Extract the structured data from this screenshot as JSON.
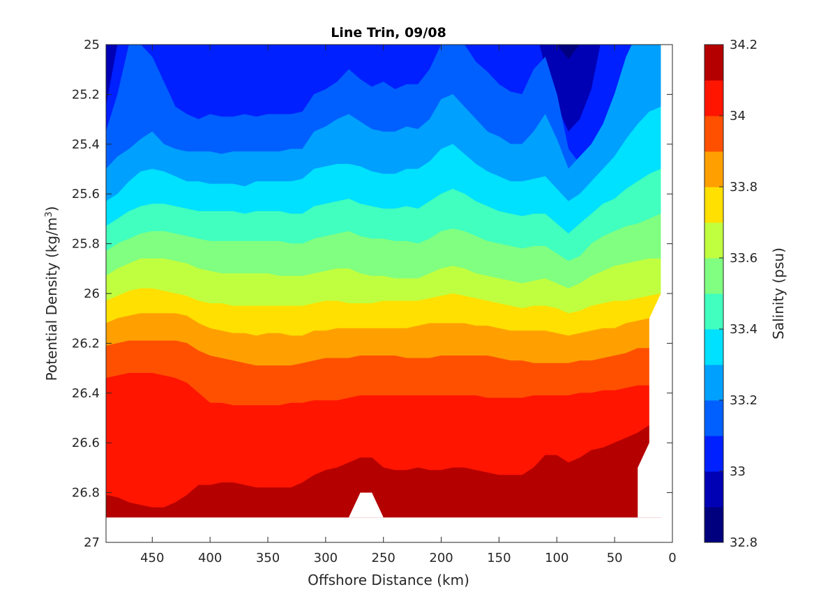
{
  "chart_data": {
    "type": "filled-contour",
    "title": "Line Trin, 09/08",
    "xlabel": "Offshore Distance (km)",
    "ylabel": "Potential Density (kg/m",
    "ylabel_superscript": "3",
    "ylabel_suffix": ")",
    "colorbar_label": "Salinity (psu)",
    "xlim": [
      490,
      0
    ],
    "x_reversed": true,
    "ylim": [
      25,
      27
    ],
    "y_reversed": true,
    "x_ticks": [
      450,
      400,
      350,
      300,
      250,
      200,
      150,
      100,
      50,
      0
    ],
    "y_ticks": [
      "25",
      "25.2",
      "25.4",
      "25.6",
      "25.8",
      "26",
      "26.2",
      "26.4",
      "26.6",
      "26.8",
      "27"
    ],
    "colorbar_ticks": [
      "32.8",
      "33",
      "33.2",
      "33.4",
      "33.6",
      "33.8",
      "34",
      "34.2"
    ],
    "colorbar_range": [
      32.8,
      34.2
    ],
    "contour_step": 0.1,
    "colormap": "jet",
    "level_colors": [
      "#00007f",
      "#0000b5",
      "#0020ff",
      "#0060ff",
      "#00a0ff",
      "#00e0ff",
      "#40ffbf",
      "#80ff80",
      "#c0ff40",
      "#ffe000",
      "#ffa000",
      "#ff5000",
      "#ff1500",
      "#b50000"
    ],
    "grid": false,
    "legend": "colorbar-right",
    "x": [
      490,
      480,
      470,
      460,
      450,
      440,
      430,
      420,
      410,
      400,
      390,
      380,
      370,
      360,
      350,
      340,
      330,
      320,
      310,
      300,
      290,
      280,
      270,
      260,
      250,
      240,
      230,
      220,
      210,
      200,
      190,
      180,
      170,
      160,
      150,
      140,
      130,
      120,
      110,
      100,
      90,
      80,
      70,
      60,
      50,
      40,
      30,
      20,
      10
    ],
    "isopycnals": [
      {
        "level": 32.9,
        "density": [
          24.9,
          24.9,
          24.9,
          24.9,
          24.9,
          24.9,
          24.9,
          25.06,
          25.1,
          25.1,
          25.1,
          25.07,
          25.1,
          25.09,
          25.07,
          25.1,
          25.1,
          25.03,
          24.9,
          24.9,
          24.9,
          24.9,
          24.9,
          24.9,
          24.9,
          24.9,
          24.9,
          24.9,
          24.9,
          24.9,
          24.9,
          24.9,
          24.9,
          24.9,
          24.9,
          24.9,
          24.9,
          24.9,
          24.9,
          25.0,
          25.06,
          25.0,
          24.9,
          24.9,
          24.9,
          24.9,
          24.9,
          24.9,
          24.9
        ]
      },
      {
        "level": 33.0,
        "density": [
          25.25,
          25.0,
          24.9,
          24.9,
          24.9,
          24.9,
          24.9,
          24.9,
          24.9,
          24.9,
          24.9,
          24.9,
          24.9,
          24.9,
          24.9,
          24.9,
          24.9,
          24.9,
          24.9,
          24.9,
          24.9,
          24.9,
          24.9,
          24.9,
          24.9,
          24.9,
          24.9,
          24.9,
          24.9,
          24.9,
          24.9,
          24.9,
          24.9,
          24.9,
          24.9,
          24.9,
          24.9,
          24.9,
          25.1,
          25.25,
          25.35,
          25.3,
          25.18,
          24.95,
          24.9,
          24.9,
          24.9,
          24.9,
          24.9
        ]
      },
      {
        "level": 33.1,
        "density": [
          25.35,
          25.2,
          25.0,
          25.0,
          25.05,
          25.15,
          25.25,
          25.28,
          25.3,
          25.28,
          25.29,
          25.29,
          25.28,
          25.29,
          25.28,
          25.28,
          25.28,
          25.27,
          25.2,
          25.18,
          25.15,
          25.1,
          25.14,
          25.17,
          25.15,
          25.18,
          25.16,
          25.16,
          25.1,
          25.0,
          24.95,
          25.0,
          25.07,
          25.11,
          25.16,
          25.19,
          25.2,
          25.1,
          25.05,
          25.2,
          25.42,
          25.48,
          25.45,
          25.38,
          25.28,
          25.18,
          25.05,
          24.9,
          24.9
        ]
      },
      {
        "level": 33.2,
        "density": [
          25.5,
          25.45,
          25.42,
          25.38,
          25.35,
          25.4,
          25.42,
          25.43,
          25.43,
          25.43,
          25.44,
          25.43,
          25.43,
          25.43,
          25.43,
          25.43,
          25.42,
          25.42,
          25.35,
          25.33,
          25.3,
          25.28,
          25.31,
          25.34,
          25.35,
          25.35,
          25.33,
          25.34,
          25.3,
          25.22,
          25.2,
          25.25,
          25.3,
          25.35,
          25.37,
          25.4,
          25.4,
          25.35,
          25.28,
          25.38,
          25.5,
          25.45,
          25.4,
          25.32,
          25.2,
          25.05,
          24.95,
          24.9,
          24.9
        ]
      },
      {
        "level": 33.3,
        "density": [
          25.63,
          25.6,
          25.55,
          25.51,
          25.5,
          25.51,
          25.53,
          25.55,
          25.55,
          25.56,
          25.56,
          25.56,
          25.57,
          25.55,
          25.55,
          25.55,
          25.55,
          25.54,
          25.5,
          25.49,
          25.48,
          25.48,
          25.49,
          25.51,
          25.52,
          25.52,
          25.5,
          25.5,
          25.47,
          25.42,
          25.4,
          25.44,
          25.48,
          25.51,
          25.53,
          25.55,
          25.55,
          25.54,
          25.53,
          25.58,
          25.63,
          25.6,
          25.55,
          25.5,
          25.45,
          25.38,
          25.32,
          25.27,
          25.25
        ]
      },
      {
        "level": 33.4,
        "density": [
          25.73,
          25.7,
          25.67,
          25.65,
          25.64,
          25.64,
          25.65,
          25.66,
          25.67,
          25.67,
          25.67,
          25.67,
          25.68,
          25.67,
          25.67,
          25.67,
          25.68,
          25.68,
          25.65,
          25.64,
          25.63,
          25.62,
          25.64,
          25.65,
          25.66,
          25.66,
          25.65,
          25.66,
          25.63,
          25.6,
          25.58,
          25.6,
          25.63,
          25.65,
          25.67,
          25.68,
          25.69,
          25.68,
          25.68,
          25.72,
          25.76,
          25.72,
          25.68,
          25.64,
          25.62,
          25.58,
          25.55,
          25.52,
          25.5
        ]
      },
      {
        "level": 33.5,
        "density": [
          25.83,
          25.8,
          25.78,
          25.76,
          25.75,
          25.75,
          25.76,
          25.77,
          25.78,
          25.79,
          25.79,
          25.79,
          25.79,
          25.79,
          25.79,
          25.79,
          25.8,
          25.8,
          25.78,
          25.77,
          25.76,
          25.75,
          25.77,
          25.78,
          25.78,
          25.79,
          25.79,
          25.8,
          25.78,
          25.75,
          25.74,
          25.75,
          25.77,
          25.79,
          25.8,
          25.81,
          25.82,
          25.81,
          25.81,
          25.84,
          25.87,
          25.85,
          25.8,
          25.77,
          25.75,
          25.73,
          25.72,
          25.7,
          25.68
        ]
      },
      {
        "level": 33.6,
        "density": [
          25.93,
          25.9,
          25.88,
          25.86,
          25.86,
          25.86,
          25.87,
          25.88,
          25.9,
          25.91,
          25.92,
          25.92,
          25.92,
          25.92,
          25.92,
          25.93,
          25.93,
          25.93,
          25.92,
          25.91,
          25.9,
          25.9,
          25.92,
          25.93,
          25.93,
          25.94,
          25.94,
          25.94,
          25.92,
          25.9,
          25.89,
          25.9,
          25.92,
          25.93,
          25.94,
          25.95,
          25.96,
          25.95,
          25.94,
          25.96,
          25.98,
          25.96,
          25.93,
          25.91,
          25.89,
          25.88,
          25.87,
          25.86,
          25.86
        ]
      },
      {
        "level": 33.7,
        "density": [
          26.03,
          26.01,
          25.99,
          25.98,
          25.98,
          25.99,
          26.0,
          26.01,
          26.03,
          26.04,
          26.04,
          26.05,
          26.05,
          26.05,
          26.05,
          26.05,
          26.05,
          26.05,
          26.04,
          26.03,
          26.03,
          26.04,
          26.04,
          26.04,
          26.03,
          26.03,
          26.03,
          26.03,
          26.02,
          26.01,
          26.0,
          26.01,
          26.02,
          26.03,
          26.04,
          26.05,
          26.06,
          26.05,
          26.05,
          26.06,
          26.08,
          26.07,
          26.05,
          26.04,
          26.03,
          26.03,
          26.02,
          26.01,
          26.0
        ]
      },
      {
        "level": 33.8,
        "density": [
          26.12,
          26.1,
          26.09,
          26.08,
          26.08,
          26.08,
          26.08,
          26.09,
          26.12,
          26.14,
          26.15,
          26.16,
          26.16,
          26.17,
          26.16,
          26.16,
          26.17,
          26.17,
          26.15,
          26.15,
          26.14,
          26.14,
          26.14,
          26.14,
          26.14,
          26.14,
          26.14,
          26.13,
          26.12,
          26.12,
          26.12,
          26.12,
          26.13,
          26.13,
          26.14,
          26.15,
          26.15,
          26.15,
          26.15,
          26.16,
          26.17,
          26.16,
          26.15,
          26.14,
          26.14,
          26.12,
          26.11,
          26.1,
          26.1
        ]
      },
      {
        "level": 33.9,
        "density": [
          26.21,
          26.2,
          26.19,
          26.19,
          26.19,
          26.19,
          26.19,
          26.2,
          26.23,
          26.25,
          26.26,
          26.27,
          26.28,
          26.29,
          26.29,
          26.29,
          26.29,
          26.28,
          26.27,
          26.26,
          26.26,
          26.26,
          26.25,
          26.25,
          26.25,
          26.25,
          26.26,
          26.26,
          26.26,
          26.25,
          26.25,
          26.25,
          26.25,
          26.25,
          26.26,
          26.27,
          26.27,
          26.28,
          26.28,
          26.28,
          26.28,
          26.27,
          26.27,
          26.26,
          26.25,
          26.24,
          26.22,
          26.22,
          26.22
        ]
      },
      {
        "level": 34.0,
        "density": [
          26.34,
          26.33,
          26.32,
          26.32,
          26.32,
          26.33,
          26.34,
          26.36,
          26.4,
          26.44,
          26.44,
          26.45,
          26.45,
          26.45,
          26.45,
          26.45,
          26.44,
          26.44,
          26.43,
          26.43,
          26.43,
          26.42,
          26.41,
          26.41,
          26.41,
          26.41,
          26.41,
          26.41,
          26.41,
          26.41,
          26.41,
          26.41,
          26.41,
          26.42,
          26.42,
          26.42,
          26.42,
          26.41,
          26.41,
          26.41,
          26.41,
          26.4,
          26.4,
          26.39,
          26.39,
          26.38,
          26.37,
          26.37,
          26.37
        ]
      },
      {
        "level": 34.1,
        "density": [
          26.81,
          26.82,
          26.84,
          26.85,
          26.86,
          26.86,
          26.84,
          26.81,
          26.77,
          26.77,
          26.76,
          26.76,
          26.77,
          26.78,
          26.78,
          26.78,
          26.78,
          26.76,
          26.73,
          26.71,
          26.7,
          26.68,
          26.66,
          26.66,
          26.7,
          26.71,
          26.71,
          26.7,
          26.71,
          26.71,
          26.7,
          26.7,
          26.71,
          26.72,
          26.73,
          26.73,
          26.73,
          26.7,
          26.65,
          26.65,
          26.68,
          26.66,
          26.63,
          26.62,
          26.6,
          26.58,
          26.56,
          26.53,
          26.52
        ]
      }
    ]
  }
}
